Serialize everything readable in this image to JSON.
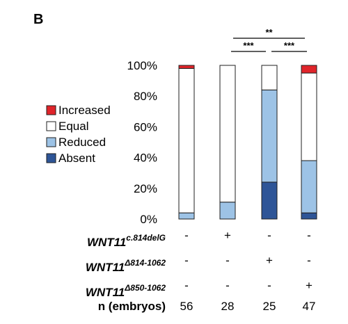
{
  "panel_label": "B",
  "chart_data": {
    "type": "bar",
    "stacked": true,
    "ylim": [
      0,
      100
    ],
    "yticks": [
      "0%",
      "20%",
      "40%",
      "60%",
      "80%",
      "100%"
    ],
    "categories": [
      "1",
      "2",
      "3",
      "4"
    ],
    "series": [
      {
        "name": "Absent",
        "color": "#2e5597",
        "values": [
          0,
          0,
          24,
          4
        ]
      },
      {
        "name": "Reduced",
        "color": "#9dc3e6",
        "values": [
          4,
          11,
          60,
          34
        ]
      },
      {
        "name": "Equal",
        "color": "#ffffff",
        "values": [
          94,
          89,
          16,
          57
        ]
      },
      {
        "name": "Increased",
        "color": "#e0242a",
        "values": [
          2,
          0,
          0,
          5
        ]
      }
    ],
    "legend": [
      "Increased",
      "Equal",
      "Reduced",
      "Absent"
    ],
    "significance": [
      {
        "label": "**",
        "from": 2,
        "to": 3,
        "level": 2
      },
      {
        "label": "***",
        "from": 1,
        "to": 2,
        "level": 1
      },
      {
        "label": "***",
        "from": 2,
        "to": 3,
        "level": 1
      }
    ]
  },
  "table": {
    "rows": [
      {
        "name": "WNT11",
        "sup": "c.814delG",
        "cells": [
          "-",
          "+",
          "-",
          "-"
        ]
      },
      {
        "name": "WNT11",
        "sup": "Δ814-1062",
        "cells": [
          "-",
          "-",
          "+",
          "-"
        ]
      },
      {
        "name": "WNT11",
        "sup": "Δ850-1062",
        "cells": [
          "-",
          "-",
          "-",
          "+"
        ]
      }
    ],
    "n_label": "n (embryos)",
    "n_values": [
      "56",
      "28",
      "25",
      "47"
    ]
  }
}
